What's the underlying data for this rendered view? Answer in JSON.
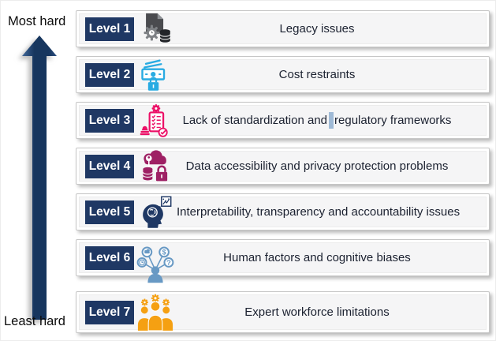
{
  "figure": {
    "type": "difficulty-ladder-diagram",
    "axis": {
      "top_label": "Most hard",
      "bottom_label": "Least hard",
      "arrow_color": "#17365E",
      "label_color": "#0D0D0D"
    },
    "levels": [
      {
        "badge": "Level 1",
        "text": "Legacy issues",
        "icon": "legacy-document-gear-database-icon",
        "icon_color": "#4A4B4F"
      },
      {
        "badge": "Level 2",
        "text": "Cost restraints",
        "icon": "money-lock-icon",
        "icon_color": "#29ABE2"
      },
      {
        "badge": "Level 3",
        "text": "Lack of standardization and regulatory frameworks",
        "text_before_cursor": "Lack of standardization and",
        "text_after_cursor": "regulatory frameworks",
        "has_cursor_artifact": true,
        "icon": "checklist-stamp-icon",
        "icon_color": "#EC1067"
      },
      {
        "badge": "Level 4",
        "text": "Data accessibility and privacy protection problems",
        "icon": "cloud-database-lock-icon",
        "icon_color": "#9E2064"
      },
      {
        "badge": "Level 5",
        "text": "Interpretability, transparency and accountability issues",
        "icon": "head-brain-chart-icon",
        "icon_color": "#1F3864"
      },
      {
        "badge": "Level 6",
        "text": "Human factors and cognitive biases",
        "icon": "person-decision-network-icon",
        "icon_color": "#6899C4"
      },
      {
        "badge": "Level 7",
        "text": "Expert workforce limitations",
        "icon": "team-gears-icon",
        "icon_color": "#F5A012"
      }
    ],
    "styles": {
      "badge_bg": "#1F3864",
      "badge_text_color": "#FFFFFF",
      "card_bg": "#F5F5F6",
      "card_border": "#C6C6C6",
      "text_color": "#1B2130",
      "cursor_color": "#9FBAD6",
      "background": "#FFFFFF"
    }
  }
}
